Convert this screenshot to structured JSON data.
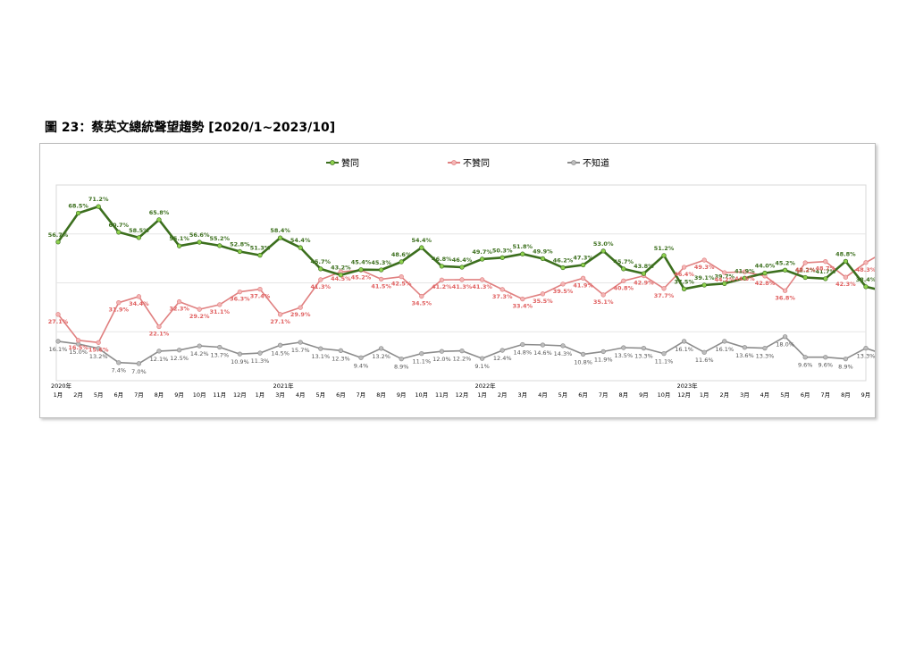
{
  "page": {
    "title": "圖 23：蔡英文總統聲望趨勢    [2020/1~2023/10]"
  },
  "chart_data": {
    "type": "line",
    "title": "",
    "xlabel": "",
    "ylabel": "",
    "ylim": [
      0,
      80
    ],
    "grid": true,
    "legend_position": "top",
    "year_labels": [
      {
        "index": 0,
        "label": "2020年"
      },
      {
        "index": 11,
        "label": "2021年"
      },
      {
        "index": 21,
        "label": "2022年"
      },
      {
        "index": 31,
        "label": "2023年"
      }
    ],
    "categories": [
      "1月",
      "2月",
      "5月",
      "6月",
      "7月",
      "8月",
      "9月",
      "10月",
      "11月",
      "12月",
      "1月",
      "3月",
      "4月",
      "5月",
      "6月",
      "7月",
      "8月",
      "9月",
      "10月",
      "11月",
      "12月",
      "1月",
      "2月",
      "3月",
      "4月",
      "5月",
      "6月",
      "7月",
      "8月",
      "9月",
      "10月",
      "12月",
      "1月",
      "2月",
      "3月",
      "4月",
      "5月",
      "6月",
      "7月",
      "8月",
      "9月",
      "10月"
    ],
    "series": [
      {
        "name": "贊同",
        "color": "#3c6f1e",
        "marker_color": "#8fd14f",
        "values": [
          56.7,
          68.5,
          71.2,
          60.7,
          58.5,
          65.8,
          55.1,
          56.6,
          55.2,
          52.8,
          51.3,
          58.4,
          54.4,
          45.7,
          43.2,
          45.4,
          45.3,
          48.6,
          54.4,
          46.8,
          46.4,
          49.7,
          50.3,
          51.8,
          49.9,
          46.2,
          47.3,
          53.0,
          45.7,
          43.8,
          51.2,
          37.5,
          39.1,
          39.7,
          41.9,
          44.0,
          45.2,
          42.2,
          41.7,
          48.8,
          38.4,
          36.5
        ]
      },
      {
        "name": "不贊同",
        "color": "#e08080",
        "marker_color": "#f4b6b6",
        "values": [
          27.1,
          16.5,
          15.6,
          31.9,
          34.4,
          22.1,
          32.3,
          29.2,
          31.1,
          36.3,
          37.4,
          27.1,
          29.9,
          41.3,
          44.5,
          45.2,
          41.5,
          42.5,
          34.5,
          41.2,
          41.3,
          41.3,
          37.3,
          33.4,
          35.5,
          39.5,
          41.9,
          35.1,
          40.8,
          42.9,
          37.7,
          46.4,
          49.3,
          44.2,
          44.5,
          42.8,
          36.8,
          48.2,
          48.7,
          42.3,
          48.3,
          53.0
        ]
      },
      {
        "name": "不知道",
        "color": "#8c8c8c",
        "marker_color": "#bdbdbd",
        "values": [
          16.1,
          15.0,
          13.2,
          7.4,
          7.0,
          12.1,
          12.5,
          14.2,
          13.7,
          10.9,
          11.3,
          14.5,
          15.7,
          13.1,
          12.3,
          9.4,
          13.2,
          8.9,
          11.1,
          12.0,
          12.2,
          9.1,
          12.4,
          14.8,
          14.6,
          14.3,
          10.8,
          11.9,
          13.5,
          13.3,
          11.1,
          16.1,
          11.6,
          16.1,
          13.6,
          13.3,
          18.0,
          9.6,
          9.6,
          8.9,
          13.3,
          10.5
        ]
      }
    ]
  }
}
